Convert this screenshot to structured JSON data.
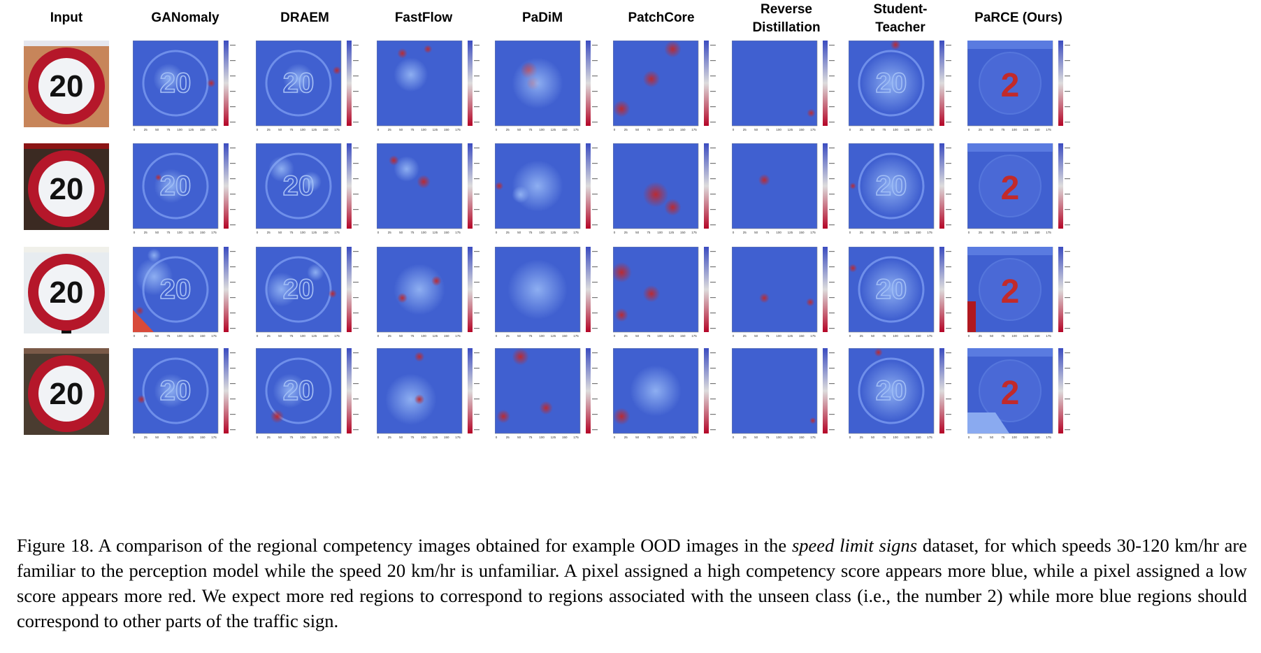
{
  "columns": [
    {
      "key": "input",
      "label": "Input"
    },
    {
      "key": "ganomaly",
      "label": "GANomaly"
    },
    {
      "key": "draem",
      "label": "DRAEM"
    },
    {
      "key": "fastflow",
      "label": "FastFlow"
    },
    {
      "key": "padim",
      "label": "PaDiM"
    },
    {
      "key": "patchcore",
      "label": "PatchCore"
    },
    {
      "key": "revdist",
      "label": "Reverse\nDistillation"
    },
    {
      "key": "stuteach",
      "label": "Student-\nTeacher"
    },
    {
      "key": "parce",
      "label": "PaRCE (Ours)"
    }
  ],
  "sign_number": "20",
  "parce_digit": "2",
  "colorbar": {
    "high": "#3b4cc0",
    "mid": "#dddcdc",
    "low": "#b40426"
  },
  "axis_ticks": [
    "0",
    "25",
    "50",
    "75",
    "100",
    "125",
    "150",
    "175"
  ],
  "caption": {
    "lead": "Figure 18. A comparison of the regional competency images obtained for example OOD images in the ",
    "dataset": "speed limit signs",
    "rest": " dataset, for which speeds 30-120 km/hr are familiar to the perception model while the speed 20 km/hr is unfamiliar. A pixel assigned a high competency score appears more blue, while a pixel assigned a low score appears more red. We expect more red regions to correspond to regions associated with the unseen class (i.e., the number 2) while more blue regions should correspond to other parts of the traffic sign."
  }
}
